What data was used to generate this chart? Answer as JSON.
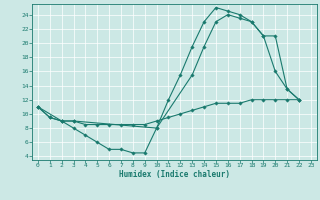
{
  "xlabel": "Humidex (Indice chaleur)",
  "bg_color": "#cce8e5",
  "grid_color": "#ffffff",
  "line_color": "#1a7a6e",
  "xlim": [
    -0.5,
    23.5
  ],
  "ylim": [
    3.5,
    25.5
  ],
  "xticks": [
    0,
    1,
    2,
    3,
    4,
    5,
    6,
    7,
    8,
    9,
    10,
    11,
    12,
    13,
    14,
    15,
    16,
    17,
    18,
    19,
    20,
    21,
    22,
    23
  ],
  "yticks": [
    4,
    6,
    8,
    10,
    12,
    14,
    16,
    18,
    20,
    22,
    24
  ],
  "line1_x": [
    0,
    1,
    2,
    3,
    4,
    5,
    6,
    7,
    8,
    9,
    10,
    11,
    12,
    13,
    14,
    15,
    16,
    17,
    18,
    19,
    20,
    21,
    22
  ],
  "line1_y": [
    11,
    9.5,
    9,
    8,
    7,
    6,
    5,
    5,
    4.5,
    4.5,
    8,
    12,
    15.5,
    19.5,
    23,
    25,
    24.5,
    24,
    23,
    21,
    16,
    13.5,
    12
  ],
  "line2_x": [
    0,
    1,
    2,
    3,
    4,
    5,
    6,
    7,
    8,
    9,
    10,
    11,
    12,
    13,
    14,
    15,
    16,
    17,
    18,
    19,
    20,
    21,
    22
  ],
  "line2_y": [
    11,
    9.5,
    9,
    9,
    8.5,
    8.5,
    8.5,
    8.5,
    8.5,
    8.5,
    9,
    9.5,
    10,
    10.5,
    11,
    11.5,
    11.5,
    11.5,
    12,
    12,
    12,
    12,
    12
  ],
  "line3_x": [
    0,
    2,
    3,
    10,
    13,
    14,
    15,
    16,
    17,
    18,
    19,
    20,
    21,
    22
  ],
  "line3_y": [
    11,
    9,
    9,
    8,
    15.5,
    19.5,
    23,
    24,
    23.5,
    23,
    21,
    21,
    13.5,
    12
  ]
}
